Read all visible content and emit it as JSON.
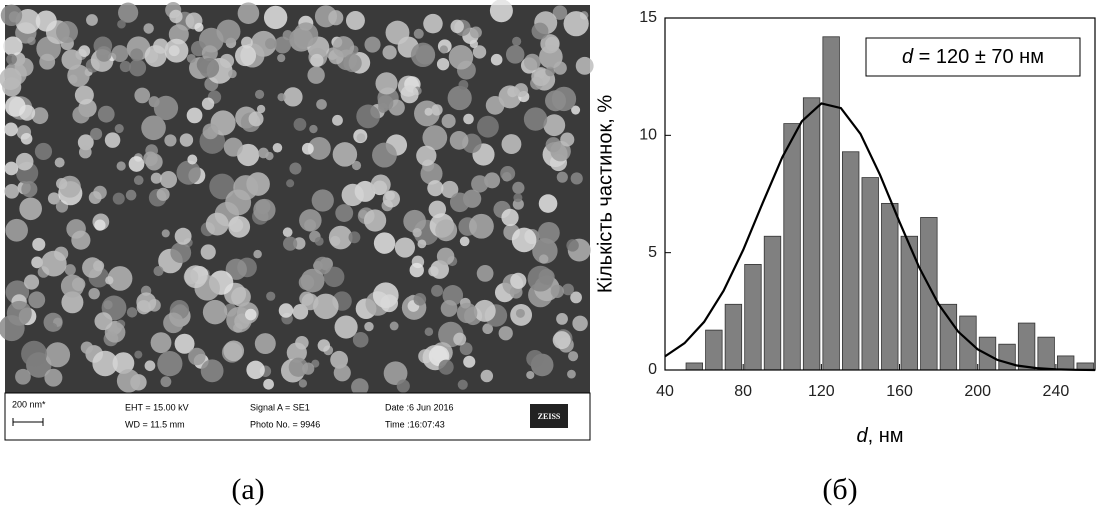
{
  "sem_image": {
    "scale_bar": "200 nm*",
    "eht": "EHT = 15.00 kV",
    "wd": "WD = 11.5 mm",
    "signal": "Signal A = SE1",
    "photo_no": "Photo No. = 9946",
    "date": "Date :6 Jun 2016",
    "time": "Time :16:07:43",
    "logo": "ZEISS"
  },
  "captions": [
    "(a)",
    "(б)"
  ],
  "chart_data": {
    "type": "histogram",
    "annotation": {
      "symbol": "d",
      "text": " = 120 ± 70 нм"
    },
    "x_label": {
      "symbol": "d",
      "text": ", нм"
    },
    "y_label": "Кількість частинок, %",
    "bins": [
      50,
      60,
      70,
      80,
      90,
      100,
      110,
      120,
      130,
      140,
      150,
      160,
      170,
      180,
      190,
      200,
      210,
      220,
      230,
      240,
      250,
      260
    ],
    "values": [
      0.3,
      1.7,
      2.8,
      4.5,
      5.7,
      10.5,
      11.6,
      14.2,
      9.3,
      8.2,
      7.1,
      5.7,
      6.5,
      2.8,
      2.3,
      1.4,
      1.1,
      2.0,
      1.4,
      0.6,
      0.3
    ],
    "color": "#808080",
    "fit": {
      "color": "#000000",
      "x": [
        40,
        50,
        60,
        70,
        80,
        90,
        100,
        110,
        120,
        130,
        140,
        150,
        160,
        170,
        180,
        190,
        200,
        210,
        220,
        230,
        240,
        250,
        260
      ],
      "values": [
        0.58,
        1.14,
        2.05,
        3.38,
        5.12,
        7.12,
        9.07,
        10.6,
        11.36,
        11.16,
        10.06,
        8.32,
        6.31,
        4.38,
        2.8,
        1.63,
        0.88,
        0.43,
        0.19,
        0.08,
        0.03,
        0.01,
        0.0
      ]
    },
    "xlim": [
      40,
      260
    ],
    "xticks": [
      40,
      80,
      120,
      160,
      200,
      240
    ],
    "ylim": [
      0,
      15
    ],
    "yticks": [
      0,
      5,
      10,
      15
    ]
  }
}
